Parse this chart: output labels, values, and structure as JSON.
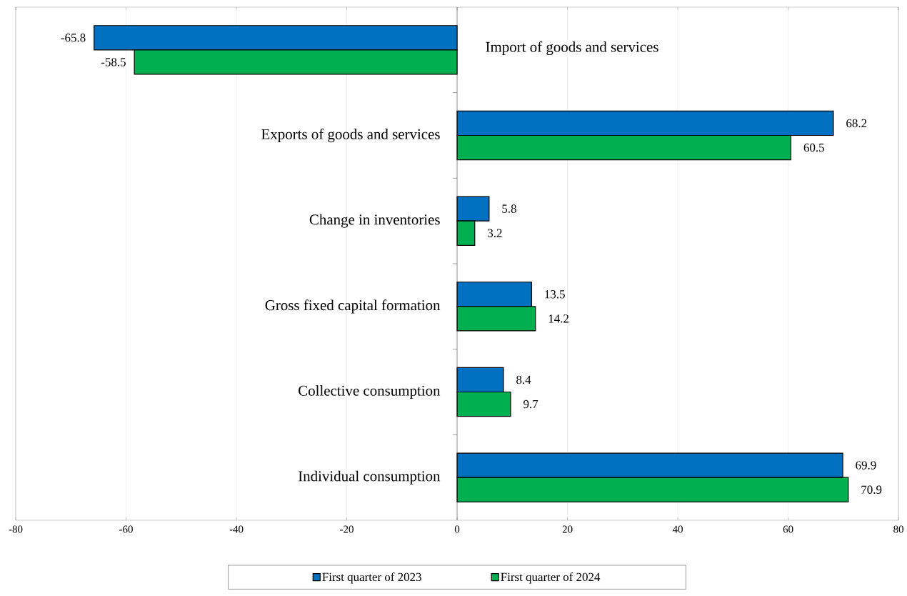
{
  "chart_data": {
    "type": "bar",
    "orientation": "horizontal",
    "categories": [
      "Import of goods and services",
      "Exports of goods and services",
      "Change in inventories",
      "Gross fixed capital formation",
      "Collective consumption",
      "Individual consumption"
    ],
    "series": [
      {
        "name": "First quarter of 2023",
        "color": "#0070c0",
        "values": [
          -65.8,
          68.2,
          5.8,
          13.5,
          8.4,
          69.9
        ]
      },
      {
        "name": "First quarter of 2024",
        "color": "#00b050",
        "values": [
          -58.5,
          60.5,
          3.2,
          14.2,
          9.7,
          70.9
        ]
      }
    ],
    "xlim": [
      -80,
      80
    ],
    "xticks": [
      -80,
      -60,
      -40,
      -20,
      0,
      20,
      40,
      60,
      80
    ],
    "grid": "x",
    "legend": "bottom",
    "data_labels": true
  }
}
